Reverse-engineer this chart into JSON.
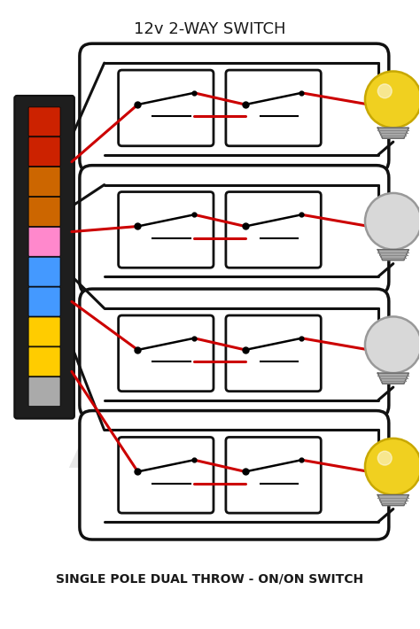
{
  "title": "12v 2-WAY SWITCH",
  "subtitle": "SINGLE POLE DUAL THROW - ON/ON SWITCH",
  "bg_color": "#ffffff",
  "title_color": "#1a1a1a",
  "title_fontsize": 13,
  "subtitle_fontsize": 10,
  "wire_black": "#111111",
  "wire_red": "#cc0000",
  "wire_lw": 2.2,
  "outer_lw": 2.5,
  "inner_lw": 2.0,
  "bulb_yellow": "#f0d020",
  "bulb_white": "#d8d8d8",
  "bulb_outline_on": "#c8a800",
  "bulb_outline_off": "#999999",
  "dot_r": 5,
  "rows": [
    {
      "bulb_on": true
    },
    {
      "bulb_on": false
    },
    {
      "bulb_on": false
    },
    {
      "bulb_on": true
    }
  ],
  "fuse_slots": [
    "#cc2200",
    "#cc2200",
    "#cc6600",
    "#cc6600",
    "#ff88cc",
    "#4499ff",
    "#4499ff",
    "#ffcc00",
    "#ffcc00",
    "#aaaaaa"
  ],
  "watermark_alpha": 0.1
}
